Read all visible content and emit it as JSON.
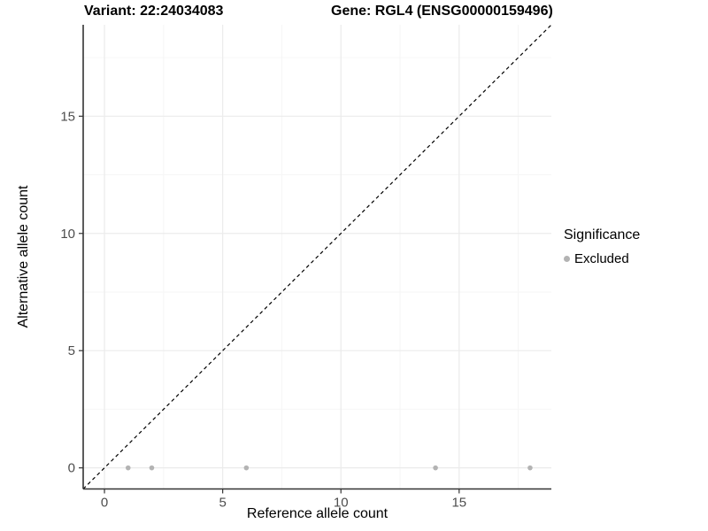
{
  "chart_data": {
    "type": "scatter",
    "title_left": "Variant: 22:24034083",
    "title_right": "Gene: RGL4 (ENSG00000159496)",
    "xlabel": "Reference allele count",
    "ylabel": "Alternative allele count",
    "xlim": [
      -0.9,
      18.9
    ],
    "ylim": [
      -0.9,
      18.9
    ],
    "x_ticks": [
      0,
      5,
      10,
      15
    ],
    "y_ticks": [
      0,
      5,
      10,
      15
    ],
    "x_minor_ticks": [
      2.5,
      7.5,
      12.5,
      17.5
    ],
    "y_minor_ticks": [
      2.5,
      7.5,
      12.5,
      17.5
    ],
    "grid": true,
    "series": [
      {
        "name": "Excluded",
        "color": "#b3b3b3",
        "points": [
          {
            "x": 1,
            "y": 0
          },
          {
            "x": 2,
            "y": 0
          },
          {
            "x": 6,
            "y": 0
          },
          {
            "x": 14,
            "y": 0
          },
          {
            "x": 18,
            "y": 0
          }
        ]
      }
    ],
    "identity_line": {
      "type": "dashed",
      "slope": 1,
      "intercept": 0,
      "color": "#000000"
    },
    "legend": {
      "title": "Significance",
      "position": "right",
      "items": [
        {
          "label": "Excluded",
          "color": "#b3b3b3"
        }
      ]
    },
    "colors": {
      "axis_line": "#333333",
      "tick_label": "#4d4d4d",
      "grid_major": "#ebebeb",
      "grid_minor": "#f6f6f6",
      "point": "#b3b3b3",
      "background": "#ffffff"
    }
  }
}
